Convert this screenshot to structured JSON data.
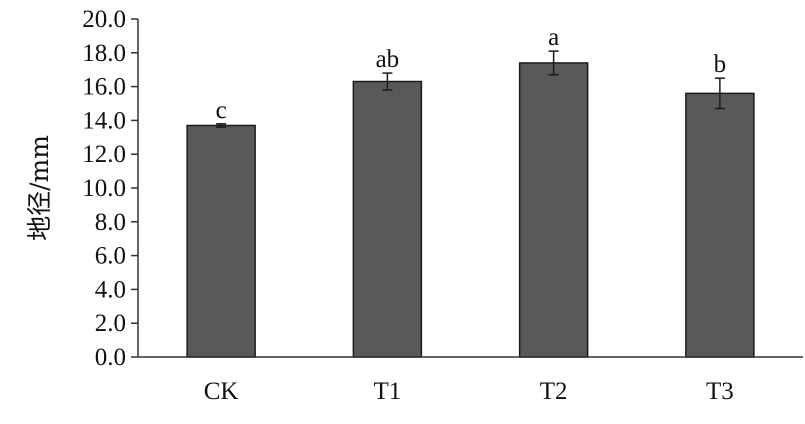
{
  "chart_data": {
    "type": "bar",
    "categories": [
      "CK",
      "T1",
      "T2",
      "T3"
    ],
    "values": [
      13.7,
      16.3,
      17.4,
      15.6
    ],
    "errors": [
      0.1,
      0.5,
      0.7,
      0.9
    ],
    "significance": [
      "c",
      "ab",
      "a",
      "b"
    ],
    "ylabel": "地径/mm",
    "xlabel": "",
    "ylim": [
      0,
      20
    ],
    "yticks": [
      "0.0",
      "2.0",
      "4.0",
      "6.0",
      "8.0",
      "10.0",
      "12.0",
      "14.0",
      "16.0",
      "18.0",
      "20.0"
    ],
    "grid": false,
    "bar_color": "#595959"
  }
}
